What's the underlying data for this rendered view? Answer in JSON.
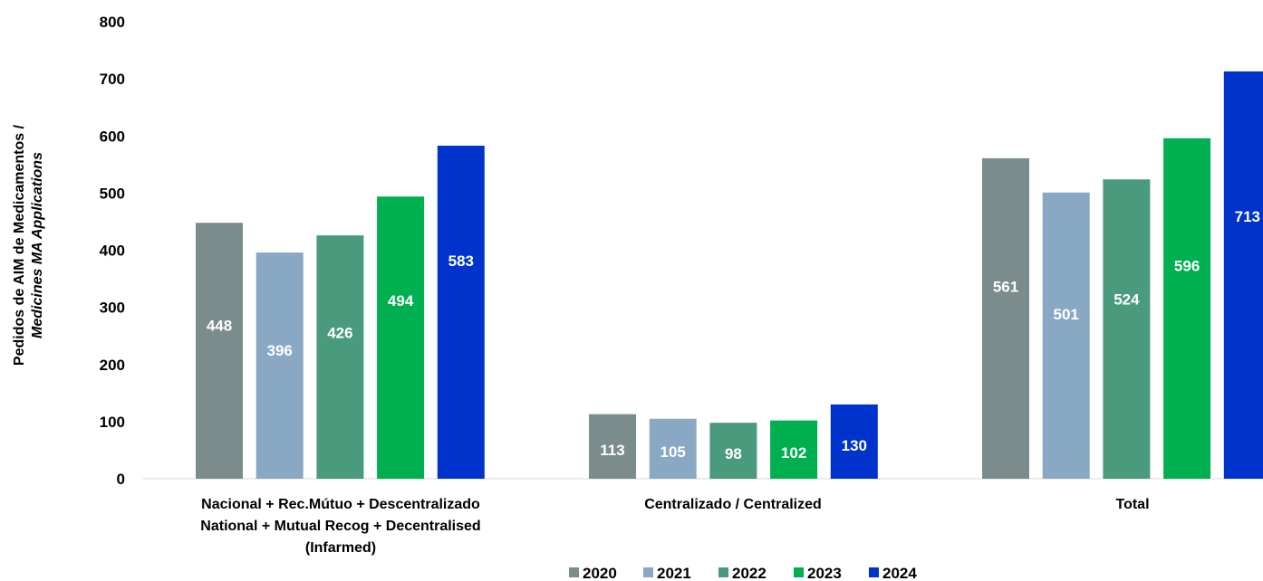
{
  "chart_data": {
    "type": "bar",
    "title": "",
    "ylabel": [
      "Pedidos de AIM de Medicamentos /",
      "Medicines MA Applications"
    ],
    "ylim": [
      0,
      800
    ],
    "yticks": [
      0,
      100,
      200,
      300,
      400,
      500,
      600,
      700,
      800
    ],
    "grid": false,
    "legend_position": "bottom",
    "categories": [
      [
        "Nacional +  Rec.Mútuo + Descentralizado",
        "National + Mutual Recog + Decentralised",
        "(Infarmed)"
      ],
      [
        "Centralizado /  Centralized"
      ],
      [
        "Total"
      ]
    ],
    "series": [
      {
        "name": "2020",
        "color": "#7a8c8c",
        "values": [
          448,
          113,
          561
        ]
      },
      {
        "name": "2021",
        "color": "#89a8c3",
        "values": [
          396,
          105,
          501
        ]
      },
      {
        "name": "2022",
        "color": "#4a9a7e",
        "values": [
          426,
          98,
          524
        ]
      },
      {
        "name": "2023",
        "color": "#00b050",
        "values": [
          494,
          102,
          596
        ]
      },
      {
        "name": "2024",
        "color": "#0033cc",
        "values": [
          583,
          130,
          713
        ]
      }
    ]
  }
}
